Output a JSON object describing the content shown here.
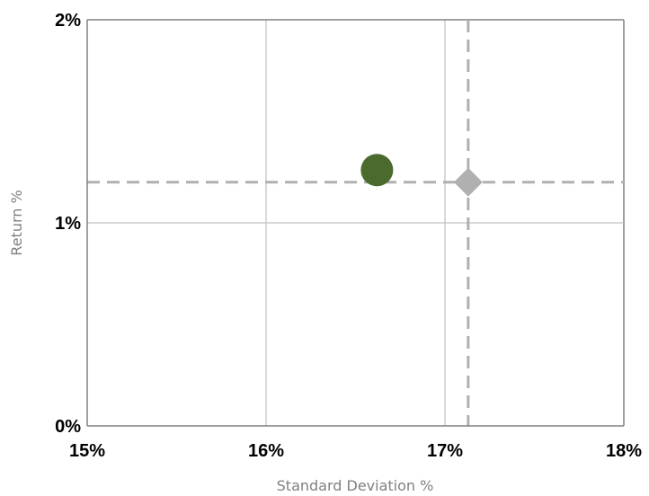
{
  "chart_data": {
    "type": "scatter",
    "xlabel": "Standard Deviation %",
    "ylabel": "Return %",
    "xlim": [
      15,
      18
    ],
    "ylim": [
      0,
      2
    ],
    "x_ticks": [
      15,
      16,
      17,
      18
    ],
    "y_ticks": [
      0,
      1,
      2
    ],
    "x_tick_labels": [
      "15%",
      "16%",
      "17%",
      "18%"
    ],
    "y_tick_labels": [
      "0%",
      "1%",
      "2%"
    ],
    "grid": true,
    "series": [
      {
        "marker": "circle",
        "color": "#4a6a2e",
        "points": [
          {
            "x": 16.62,
            "y": 1.26
          }
        ]
      },
      {
        "marker": "diamond",
        "color": "#b0b0b0",
        "points": [
          {
            "x": 17.13,
            "y": 1.2
          }
        ]
      }
    ],
    "reference_lines": [
      {
        "orientation": "horizontal",
        "value": 1.2,
        "style": "dashed",
        "color": "#b0b0b0"
      },
      {
        "orientation": "vertical",
        "value": 17.13,
        "style": "dashed",
        "color": "#b0b0b0"
      }
    ],
    "colors": {
      "axis": "#808080",
      "grid": "#c0c0c0"
    }
  }
}
